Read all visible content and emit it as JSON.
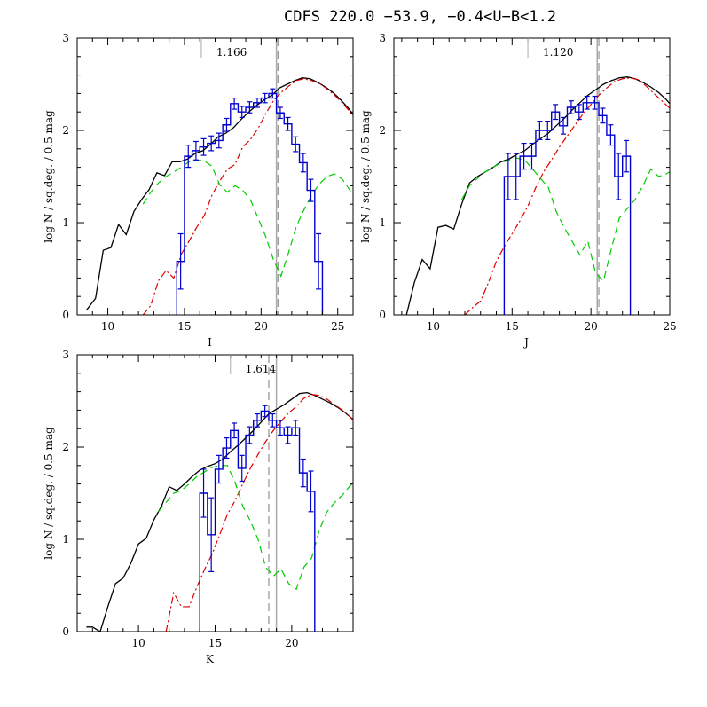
{
  "figure": {
    "title": "CDFS 220.0  −53.9,  −0.4<U−B<1.2"
  },
  "colors": {
    "total_model": "#000000",
    "red_model": "#dd0000",
    "green_model": "#00cc00",
    "data_histogram": "#0000cc",
    "marker_line": "#aaaaaa",
    "dashed_marker": "#999999"
  },
  "chart_data": [
    {
      "type": "line",
      "panel": "I",
      "xlabel": "I",
      "ylabel": "log N / sq.deg. / 0.5 mag",
      "xlim": [
        8,
        26
      ],
      "ylim": [
        0,
        3
      ],
      "xticks": [
        10,
        15,
        20,
        25
      ],
      "yticks": [
        0,
        1,
        2,
        3
      ],
      "annotation": "1.166",
      "annotation_tick_x": 16.1,
      "solid_marker_x": 21.0,
      "dashed_marker_x": 21.1,
      "series": [
        {
          "role": "total",
          "x": [
            8.6,
            9.2,
            9.7,
            10.2,
            10.7,
            11.2,
            11.7,
            12.2,
            12.7,
            13.2,
            13.7,
            14.2,
            14.7,
            15.2,
            15.7,
            16.2,
            16.7,
            17.2,
            17.7,
            18.2,
            18.7,
            19.2,
            19.7,
            20.2,
            20.7,
            21.2,
            21.7,
            22.2,
            22.7,
            23.2,
            23.7,
            24.2,
            24.7,
            25.2,
            25.7,
            26.0
          ],
          "y": [
            0.05,
            0.18,
            0.7,
            0.73,
            0.98,
            0.87,
            1.12,
            1.25,
            1.36,
            1.54,
            1.51,
            1.66,
            1.66,
            1.69,
            1.75,
            1.78,
            1.85,
            1.93,
            1.97,
            2.03,
            2.12,
            2.2,
            2.27,
            2.33,
            2.38,
            2.46,
            2.5,
            2.54,
            2.57,
            2.56,
            2.52,
            2.47,
            2.41,
            2.33,
            2.24,
            2.17
          ]
        },
        {
          "role": "red",
          "x": [
            12.3,
            12.8,
            13.3,
            13.8,
            14.3,
            14.8,
            15.3,
            15.8,
            16.3,
            16.8,
            17.3,
            17.8,
            18.3,
            18.8,
            19.3,
            19.8,
            20.3,
            20.8,
            21.3,
            21.8,
            22.3,
            22.8,
            23.3,
            23.8,
            24.3,
            24.8,
            25.3,
            25.8,
            26.0
          ],
          "y": [
            0.0,
            0.1,
            0.37,
            0.48,
            0.4,
            0.66,
            0.8,
            0.95,
            1.08,
            1.3,
            1.45,
            1.58,
            1.63,
            1.82,
            1.9,
            2.02,
            2.18,
            2.32,
            2.41,
            2.48,
            2.54,
            2.56,
            2.54,
            2.51,
            2.45,
            2.38,
            2.3,
            2.2,
            2.15
          ]
        },
        {
          "role": "green",
          "x": [
            12.3,
            12.8,
            13.3,
            13.8,
            14.3,
            14.8,
            15.3,
            15.8,
            16.3,
            16.8,
            17.3,
            17.8,
            18.3,
            18.8,
            19.3,
            19.8,
            20.3,
            20.8,
            21.3,
            21.8,
            22.3,
            22.8,
            23.3,
            23.8,
            24.3,
            24.8,
            25.3,
            25.8,
            26.0
          ],
          "y": [
            1.2,
            1.33,
            1.43,
            1.5,
            1.55,
            1.6,
            1.66,
            1.68,
            1.67,
            1.61,
            1.41,
            1.33,
            1.4,
            1.35,
            1.25,
            1.05,
            0.85,
            0.6,
            0.42,
            0.68,
            0.96,
            1.14,
            1.3,
            1.42,
            1.5,
            1.53,
            1.47,
            1.35,
            1.3
          ]
        },
        {
          "role": "histogram",
          "edges": [
            14.5,
            15.0,
            15.5,
            16.0,
            16.5,
            17.0,
            17.5,
            18.0,
            18.5,
            19.0,
            19.5,
            20.0,
            20.5,
            21.0,
            21.5,
            22.0,
            22.5,
            23.0,
            23.5,
            24.0
          ],
          "values": [
            0.58,
            1.72,
            1.78,
            1.82,
            1.86,
            1.89,
            2.06,
            2.29,
            2.2,
            2.25,
            2.3,
            2.35,
            2.4,
            2.19,
            2.07,
            1.85,
            1.65,
            1.35,
            0.58
          ],
          "errors": [
            0.3,
            0.12,
            0.1,
            0.09,
            0.08,
            0.08,
            0.07,
            0.06,
            0.06,
            0.06,
            0.05,
            0.05,
            0.05,
            0.06,
            0.07,
            0.08,
            0.1,
            0.12,
            0.3
          ]
        }
      ]
    },
    {
      "type": "line",
      "panel": "J",
      "xlabel": "J",
      "ylabel": "log N / sq.deg. / 0.5 mag",
      "xlim": [
        7.5,
        25
      ],
      "ylim": [
        0,
        3
      ],
      "xticks": [
        10,
        15,
        20,
        25
      ],
      "yticks": [
        0,
        1,
        2,
        3
      ],
      "annotation": "1.120",
      "annotation_tick_x": 16.0,
      "solid_marker_x": 20.4,
      "dashed_marker_x": 20.5,
      "series": [
        {
          "role": "total",
          "x": [
            8.3,
            8.8,
            9.3,
            9.8,
            10.3,
            10.8,
            11.3,
            11.8,
            12.3,
            12.8,
            13.3,
            13.8,
            14.3,
            14.8,
            15.3,
            15.8,
            16.3,
            16.8,
            17.3,
            17.8,
            18.3,
            18.8,
            19.3,
            19.8,
            20.3,
            20.8,
            21.3,
            21.8,
            22.3,
            22.8,
            23.3,
            23.8,
            24.3,
            24.8,
            25.0
          ],
          "y": [
            0.0,
            0.35,
            0.6,
            0.5,
            0.95,
            0.97,
            0.93,
            1.2,
            1.43,
            1.5,
            1.55,
            1.6,
            1.66,
            1.69,
            1.74,
            1.78,
            1.85,
            1.91,
            1.97,
            2.05,
            2.13,
            2.22,
            2.3,
            2.38,
            2.44,
            2.5,
            2.54,
            2.57,
            2.58,
            2.56,
            2.52,
            2.47,
            2.41,
            2.33,
            2.29
          ]
        },
        {
          "role": "red",
          "x": [
            12.0,
            12.5,
            13.0,
            13.5,
            14.0,
            14.5,
            15.0,
            15.5,
            16.0,
            16.5,
            17.0,
            17.5,
            18.0,
            18.5,
            19.0,
            19.5,
            20.0,
            20.5,
            21.0,
            21.5,
            22.0,
            22.5,
            23.0,
            23.5,
            24.0,
            24.5,
            25.0
          ],
          "y": [
            0.0,
            0.08,
            0.15,
            0.35,
            0.58,
            0.74,
            0.88,
            1.02,
            1.18,
            1.38,
            1.55,
            1.68,
            1.82,
            1.94,
            2.06,
            2.18,
            2.28,
            2.38,
            2.46,
            2.53,
            2.56,
            2.57,
            2.55,
            2.48,
            2.4,
            2.32,
            2.24
          ]
        },
        {
          "role": "green",
          "x": [
            11.8,
            12.3,
            12.8,
            13.3,
            13.8,
            14.3,
            14.8,
            15.3,
            15.8,
            16.3,
            16.8,
            17.3,
            17.8,
            18.3,
            18.8,
            19.3,
            19.8,
            20.3,
            20.8,
            21.3,
            21.8,
            22.3,
            22.8,
            23.3,
            23.8,
            24.3,
            24.8,
            25.0
          ],
          "y": [
            1.25,
            1.4,
            1.48,
            1.55,
            1.6,
            1.65,
            1.68,
            1.7,
            1.68,
            1.58,
            1.48,
            1.38,
            1.12,
            0.95,
            0.8,
            0.65,
            0.8,
            0.45,
            0.37,
            0.72,
            1.05,
            1.15,
            1.25,
            1.4,
            1.58,
            1.5,
            1.53,
            1.55
          ]
        },
        {
          "role": "histogram",
          "edges": [
            14.5,
            15.0,
            15.5,
            16.0,
            16.5,
            17.0,
            17.5,
            18.0,
            18.5,
            19.0,
            19.5,
            20.0,
            20.5,
            21.0,
            21.5,
            22.0,
            22.5
          ],
          "values": [
            1.5,
            1.5,
            1.72,
            1.72,
            2.0,
            2.0,
            2.2,
            2.05,
            2.25,
            2.2,
            2.3,
            2.3,
            2.16,
            1.95,
            1.5,
            1.72
          ],
          "errors": [
            0.25,
            0.25,
            0.14,
            0.14,
            0.1,
            0.1,
            0.08,
            0.09,
            0.07,
            0.08,
            0.07,
            0.07,
            0.08,
            0.11,
            0.25,
            0.17
          ]
        }
      ]
    },
    {
      "type": "line",
      "panel": "K",
      "xlabel": "K",
      "ylabel": "log N / sq.deg. / 0.5 mag",
      "xlim": [
        6,
        24
      ],
      "ylim": [
        0,
        3
      ],
      "xticks": [
        10,
        15,
        20
      ],
      "yticks": [
        0,
        1,
        2,
        3
      ],
      "annotation": "1.614",
      "annotation_tick_x": 16.0,
      "solid_marker_x": 19.0,
      "dashed_marker_x": 18.5,
      "series": [
        {
          "role": "total",
          "x": [
            6.6,
            7.0,
            7.5,
            8.0,
            8.5,
            9.0,
            9.5,
            10.0,
            10.5,
            11.0,
            11.5,
            12.0,
            12.5,
            13.0,
            13.5,
            14.0,
            14.5,
            15.0,
            15.5,
            16.0,
            16.5,
            17.0,
            17.5,
            18.0,
            18.5,
            19.0,
            19.5,
            20.0,
            20.5,
            21.0,
            21.5,
            22.0,
            22.5,
            23.0,
            23.5,
            24.0
          ],
          "y": [
            0.05,
            0.05,
            0.0,
            0.27,
            0.52,
            0.58,
            0.74,
            0.95,
            1.01,
            1.21,
            1.36,
            1.57,
            1.53,
            1.6,
            1.68,
            1.75,
            1.79,
            1.82,
            1.87,
            1.95,
            2.02,
            2.1,
            2.18,
            2.27,
            2.36,
            2.41,
            2.46,
            2.52,
            2.58,
            2.59,
            2.56,
            2.52,
            2.48,
            2.43,
            2.37,
            2.3
          ]
        },
        {
          "role": "red",
          "x": [
            11.8,
            12.3,
            12.8,
            13.3,
            13.8,
            14.3,
            14.8,
            15.3,
            15.8,
            16.3,
            16.8,
            17.3,
            17.8,
            18.3,
            18.8,
            19.3,
            19.8,
            20.3,
            20.8,
            21.3,
            21.8,
            22.3,
            22.8,
            23.3,
            23.8,
            24.0
          ],
          "y": [
            0.0,
            0.42,
            0.27,
            0.27,
            0.48,
            0.67,
            0.84,
            1.05,
            1.27,
            1.42,
            1.6,
            1.77,
            1.92,
            2.06,
            2.18,
            2.28,
            2.37,
            2.44,
            2.53,
            2.57,
            2.56,
            2.52,
            2.46,
            2.4,
            2.33,
            2.29
          ]
        },
        {
          "role": "green",
          "x": [
            11.3,
            11.8,
            12.3,
            12.8,
            13.3,
            13.8,
            14.3,
            14.8,
            15.3,
            15.8,
            16.3,
            16.8,
            17.3,
            17.8,
            18.3,
            18.8,
            19.3,
            19.8,
            20.3,
            20.8,
            21.3,
            21.8,
            22.3,
            22.8,
            23.3,
            23.8,
            24.0
          ],
          "y": [
            1.3,
            1.4,
            1.5,
            1.53,
            1.6,
            1.68,
            1.73,
            1.78,
            1.8,
            1.8,
            1.62,
            1.36,
            1.2,
            1.0,
            0.7,
            0.6,
            0.68,
            0.52,
            0.46,
            0.7,
            0.8,
            1.1,
            1.3,
            1.4,
            1.48,
            1.58,
            1.6
          ]
        },
        {
          "role": "histogram",
          "edges": [
            14.0,
            14.5,
            15.0,
            15.5,
            16.0,
            16.5,
            17.0,
            17.5,
            18.0,
            18.5,
            19.0,
            19.5,
            20.0,
            20.5,
            21.0,
            21.5
          ],
          "values": [
            1.5,
            1.05,
            1.76,
            1.99,
            2.18,
            1.77,
            2.13,
            2.29,
            2.39,
            2.29,
            2.21,
            2.13,
            2.21,
            1.72,
            1.52
          ],
          "errors": [
            0.26,
            0.4,
            0.15,
            0.11,
            0.08,
            0.14,
            0.09,
            0.07,
            0.06,
            0.07,
            0.08,
            0.09,
            0.08,
            0.15,
            0.22
          ]
        }
      ]
    }
  ]
}
